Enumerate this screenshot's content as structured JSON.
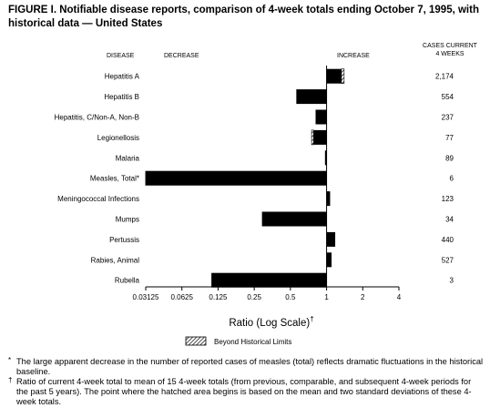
{
  "title": "FIGURE I. Notifiable disease reports, comparison of 4-week totals ending October 7, 1995, with historical data — United States",
  "chart_data": {
    "type": "bar",
    "orientation": "horizontal",
    "scale": "log2",
    "column_headers": {
      "disease": "DISEASE",
      "decrease": "DECREASE",
      "increase": "INCREASE",
      "cases": [
        "CASES CURRENT",
        "4 WEEKS"
      ]
    },
    "xlabel": "Ratio (Log Scale)",
    "xlabel_mark": "†",
    "xlim": [
      0.03125,
      4
    ],
    "ticks": [
      {
        "value": 0.03125,
        "label": "0.03125"
      },
      {
        "value": 0.0625,
        "label": "0.0625"
      },
      {
        "value": 0.125,
        "label": "0.125"
      },
      {
        "value": 0.25,
        "label": "0.25"
      },
      {
        "value": 0.5,
        "label": "0.5"
      },
      {
        "value": 1,
        "label": "1"
      },
      {
        "value": 2,
        "label": "2"
      },
      {
        "value": 4,
        "label": "4"
      }
    ],
    "reference_line": 1,
    "categories": [
      "Hepatitis A",
      "Hepatitis B",
      "Hepatitis, C/Non-A, Non-B",
      "Legionellosis",
      "Malaria",
      "Measles, Total*",
      "Meningococcal Infections",
      "Mumps",
      "Pertussis",
      "Rabies, Animal",
      "Rubella"
    ],
    "values": [
      1.4,
      0.56,
      0.81,
      0.75,
      0.97,
      0.031,
      1.07,
      0.29,
      1.18,
      1.1,
      0.11
    ],
    "beyond_limits_from": [
      1.33,
      null,
      null,
      0.78,
      null,
      null,
      null,
      null,
      null,
      null,
      null
    ],
    "cases": [
      "2,174",
      "554",
      "237",
      "77",
      "89",
      "6",
      "123",
      "34",
      "440",
      "527",
      "3"
    ],
    "legend": {
      "label": "Beyond Historical Limits",
      "position": "bottom-center"
    }
  },
  "footnotes": [
    {
      "mark": "*",
      "text": "The large apparent decrease in the number of reported cases of measles (total) reflects dramatic fluctuations in the historical baseline."
    },
    {
      "mark": "†",
      "text": "Ratio of current 4-week total to mean of 15 4-week totals (from previous, comparable, and subsequent 4-week periods for the past 5 years). The point where the hatched area begins is based on the mean and two standard deviations of these 4-week totals."
    }
  ],
  "colors": {
    "bar": "#000000",
    "hatch_bg": "#ffffff",
    "hatch_line": "#000000"
  }
}
